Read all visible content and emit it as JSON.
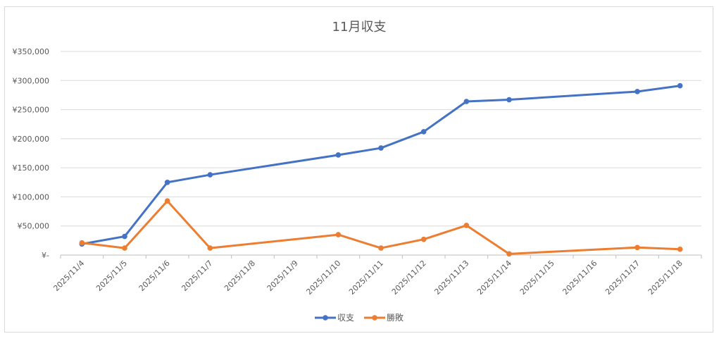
{
  "chart_data": {
    "type": "line",
    "title": "11月収支",
    "categories": [
      "2025/11/4",
      "2025/11/5",
      "2025/11/6",
      "2025/11/7",
      "2025/11/8",
      "2025/11/9",
      "2025/11/10",
      "2025/11/11",
      "2025/11/12",
      "2025/11/13",
      "2025/11/14",
      "2025/11/15",
      "2025/11/16",
      "2025/11/17",
      "2025/11/18"
    ],
    "series": [
      {
        "name": "収支",
        "color": "#4472c4",
        "values": [
          19000,
          32000,
          125000,
          138000,
          null,
          null,
          172000,
          184000,
          212000,
          264000,
          267000,
          null,
          null,
          281000,
          291000
        ]
      },
      {
        "name": "勝敗",
        "color": "#ed7d31",
        "values": [
          21000,
          12000,
          93000,
          12000,
          null,
          null,
          35000,
          12000,
          27000,
          51000,
          2000,
          null,
          null,
          13000,
          10000
        ]
      }
    ],
    "yticks": [
      "¥-",
      "¥50,000",
      "¥100,000",
      "¥150,000",
      "¥200,000",
      "¥250,000",
      "¥300,000",
      "¥350,000"
    ],
    "ylim": [
      0,
      350000
    ],
    "grid": true,
    "legend": "bottom"
  }
}
